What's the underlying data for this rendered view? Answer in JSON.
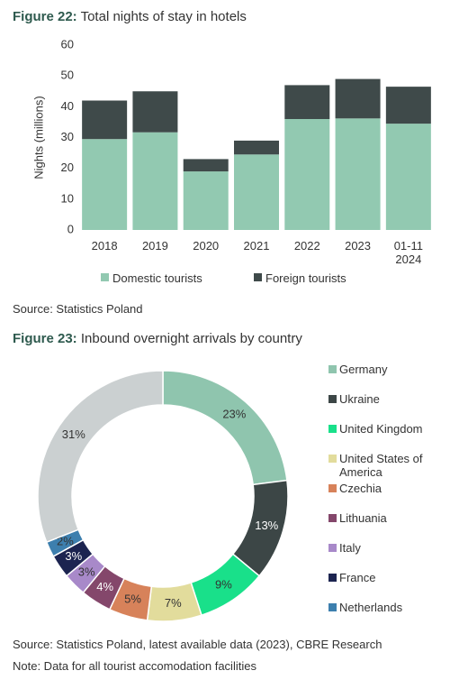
{
  "chart_data": [
    {
      "type": "bar",
      "figure": "Figure 22:",
      "title": "Total nights of stay in hotels",
      "y_label": "Nights (millions)",
      "categories": [
        "2018",
        "2019",
        "2020",
        "2021",
        "2022",
        "2023",
        "01-11 2024"
      ],
      "series": [
        {
          "name": "Domestic tourists",
          "color": "#92c9b1",
          "values": [
            29.5,
            31.7,
            19,
            24.5,
            36,
            36.2,
            34.5
          ]
        },
        {
          "name": "Foreign tourists",
          "color": "#3f4a4a",
          "values": [
            12.5,
            13.3,
            4,
            4.5,
            11,
            12.8,
            12
          ]
        }
      ],
      "stacked": true,
      "ylim": [
        0,
        60
      ],
      "yticks": [
        0,
        10,
        20,
        30,
        40,
        50,
        60
      ],
      "grid": false,
      "legend": "bottom",
      "source": "Source: Statistics Poland"
    },
    {
      "type": "donut",
      "figure": "Figure 23:",
      "title": "Inbound overnight arrivals by country",
      "categories": [
        "Germany",
        "Ukraine",
        "United Kingdom",
        "United States of America",
        "Czechia",
        "Lithuania",
        "Italy",
        "France",
        "Netherlands",
        null
      ],
      "values": [
        23,
        13,
        9,
        7,
        5,
        4,
        3,
        3,
        2,
        31
      ],
      "value_labels": [
        "23%",
        "13%",
        "9%",
        "7%",
        "5%",
        "4%",
        "3%",
        "3%",
        "2%",
        "31%"
      ],
      "colors": [
        "#8fc5ae",
        "#3c4646",
        "#19e08a",
        "#e2dc9c",
        "#d7825a",
        "#84476b",
        "#a889c9",
        "#1c2450",
        "#3d7fae",
        "#cbd0d1"
      ],
      "legend": "right",
      "source": "Source: Statistics Poland, latest available data (2023), CBRE Research",
      "note": "Note: Data for all  tourist accomodation facilities"
    }
  ]
}
